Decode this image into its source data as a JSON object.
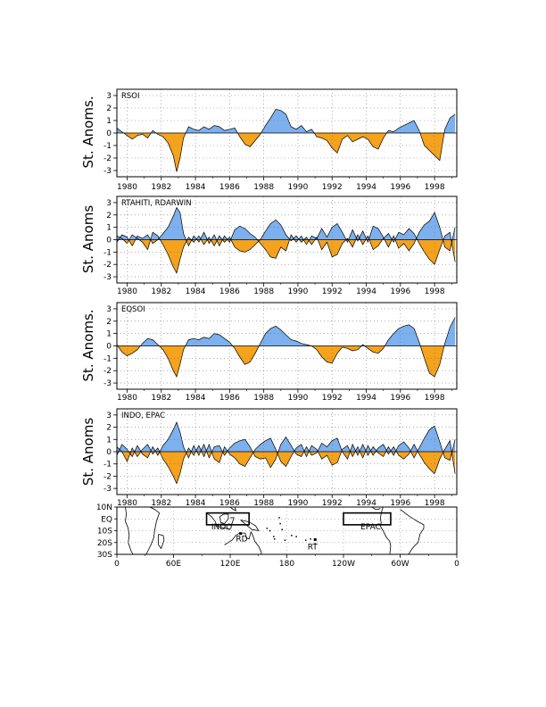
{
  "chart_data": [
    {
      "type": "area",
      "title": "RSOI",
      "ylabel": "St. Anoms.",
      "ylim": [
        -3.5,
        3.5
      ],
      "yticks": [
        -3,
        -2,
        -1,
        0,
        1,
        2,
        3
      ],
      "xlim": [
        1979.4,
        1999.3
      ],
      "xticks": [
        1980,
        1982,
        1984,
        1986,
        1988,
        1990,
        1992,
        1994,
        1996,
        1998
      ],
      "grid": true,
      "positive_color": "#7cb0ee",
      "negative_color": "#f5a21c",
      "x": [
        1979.4,
        1979.7,
        1980.0,
        1980.3,
        1980.6,
        1980.9,
        1981.2,
        1981.5,
        1981.8,
        1982.1,
        1982.4,
        1982.7,
        1982.9,
        1983.1,
        1983.3,
        1983.6,
        1983.9,
        1984.2,
        1984.5,
        1984.8,
        1985.1,
        1985.4,
        1985.7,
        1986.0,
        1986.3,
        1986.6,
        1986.9,
        1987.2,
        1987.5,
        1987.8,
        1988.1,
        1988.4,
        1988.7,
        1989.0,
        1989.3,
        1989.6,
        1989.9,
        1990.2,
        1990.5,
        1990.8,
        1991.1,
        1991.4,
        1991.7,
        1992.0,
        1992.3,
        1992.6,
        1992.9,
        1993.2,
        1993.5,
        1993.8,
        1994.1,
        1994.4,
        1994.7,
        1995.0,
        1995.3,
        1995.6,
        1995.9,
        1996.2,
        1996.5,
        1996.8,
        1997.1,
        1997.4,
        1997.7,
        1998.0,
        1998.3,
        1998.6,
        1998.9,
        1999.2
      ],
      "values": [
        0.4,
        0.1,
        -0.2,
        -0.5,
        -0.2,
        -0.1,
        -0.4,
        0.2,
        -0.1,
        -0.3,
        -0.8,
        -1.8,
        -3.1,
        -2.0,
        -0.4,
        0.5,
        0.3,
        0.2,
        0.5,
        0.3,
        0.6,
        0.5,
        0.2,
        0.3,
        0.4,
        -0.3,
        -0.9,
        -1.1,
        -0.6,
        -0.1,
        0.6,
        1.2,
        1.9,
        1.8,
        1.5,
        0.5,
        0.3,
        0.6,
        0.1,
        0.3,
        -0.3,
        -0.4,
        -0.6,
        -1.2,
        -1.6,
        -0.5,
        -0.2,
        -0.7,
        -0.5,
        -0.3,
        -0.5,
        -1.1,
        -1.3,
        -0.4,
        0.2,
        0.1,
        0.4,
        0.6,
        0.8,
        1.0,
        0.2,
        -1.0,
        -1.4,
        -1.8,
        -2.2,
        0.3,
        1.2,
        1.5
      ]
    },
    {
      "type": "area",
      "title": "RTAHITI, RDARWIN",
      "ylabel": "St. Anoms",
      "ylim": [
        -3.5,
        3.5
      ],
      "yticks": [
        -3,
        -2,
        -1,
        0,
        1,
        2,
        3
      ],
      "xlim": [
        1979.4,
        1999.3
      ],
      "xticks": [
        1980,
        1982,
        1984,
        1986,
        1988,
        1990,
        1992,
        1994,
        1996,
        1998
      ],
      "grid": true,
      "positive_color": "#7cb0ee",
      "negative_color": "#f5a21c",
      "x": [
        1979.4,
        1979.7,
        1980.0,
        1980.3,
        1980.6,
        1980.9,
        1981.2,
        1981.5,
        1981.8,
        1982.1,
        1982.4,
        1982.7,
        1982.9,
        1983.1,
        1983.3,
        1983.6,
        1983.9,
        1984.2,
        1984.5,
        1984.8,
        1985.1,
        1985.4,
        1985.7,
        1986.0,
        1986.3,
        1986.6,
        1986.9,
        1987.2,
        1987.5,
        1987.8,
        1988.1,
        1988.4,
        1988.7,
        1989.0,
        1989.3,
        1989.6,
        1989.9,
        1990.2,
        1990.5,
        1990.8,
        1991.1,
        1991.4,
        1991.7,
        1992.0,
        1992.3,
        1992.6,
        1992.9,
        1993.2,
        1993.5,
        1993.8,
        1994.1,
        1994.4,
        1994.7,
        1995.0,
        1995.3,
        1995.6,
        1995.9,
        1996.2,
        1996.5,
        1996.8,
        1997.1,
        1997.4,
        1997.7,
        1998.0,
        1998.3,
        1998.6,
        1998.9,
        1999.2
      ],
      "series": [
        {
          "values": [
            0.3,
            0.1,
            -0.3,
            0.4,
            0.1,
            -0.2,
            -0.8,
            0.6,
            0.3,
            -0.4,
            -1.2,
            -2.2,
            -2.7,
            -1.6,
            -0.6,
            0.2,
            -0.2,
            0.3,
            -0.4,
            0.2,
            -0.5,
            0.3,
            -0.2,
            0.2,
            -0.6,
            -0.9,
            -1.0,
            -0.8,
            -0.4,
            0.0,
            0.7,
            1.3,
            1.6,
            1.2,
            0.4,
            -0.1,
            0.3,
            -0.2,
            0.2,
            -0.4,
            0.2,
            -0.8,
            -0.2,
            -1.4,
            -1.2,
            -0.3,
            0.1,
            -0.6,
            0.4,
            -0.4,
            0.3,
            -0.8,
            -0.5,
            0.1,
            0.5,
            -0.2,
            0.6,
            0.4,
            0.9,
            0.5,
            -0.3,
            -1.0,
            -1.6,
            -2.0,
            -0.8,
            0.3,
            0.6,
            -1.8
          ]
        },
        {
          "values": [
            -0.2,
            0.4,
            0.2,
            -0.5,
            0.3,
            0.1,
            0.4,
            -0.3,
            0.0,
            0.5,
            1.0,
            1.9,
            2.6,
            2.2,
            0.5,
            -0.5,
            0.3,
            -0.2,
            0.6,
            -0.3,
            0.4,
            -0.5,
            0.3,
            -0.2,
            0.8,
            1.1,
            0.9,
            0.5,
            0.2,
            -0.3,
            -0.8,
            -1.4,
            -1.5,
            -0.6,
            -0.9,
            0.4,
            -0.2,
            0.3,
            -0.4,
            0.3,
            0.1,
            0.9,
            0.2,
            1.0,
            1.3,
            0.6,
            -0.2,
            0.8,
            -0.1,
            0.7,
            -0.2,
            1.1,
            0.9,
            0.2,
            -0.6,
            0.3,
            -0.7,
            -0.3,
            -0.9,
            -0.3,
            0.6,
            1.2,
            1.5,
            2.2,
            1.0,
            -0.6,
            -0.9,
            1.0
          ]
        }
      ]
    },
    {
      "type": "area",
      "title": "EQSOI",
      "ylabel": "St. Anoms.",
      "ylim": [
        -3.5,
        3.5
      ],
      "yticks": [
        -3,
        -2,
        -1,
        0,
        1,
        2,
        3
      ],
      "xlim": [
        1979.4,
        1999.3
      ],
      "xticks": [
        1980,
        1982,
        1984,
        1986,
        1988,
        1990,
        1992,
        1994,
        1996,
        1998
      ],
      "grid": true,
      "positive_color": "#7cb0ee",
      "negative_color": "#f5a21c",
      "x": [
        1979.4,
        1979.7,
        1980.0,
        1980.3,
        1980.6,
        1980.9,
        1981.2,
        1981.5,
        1981.8,
        1982.1,
        1982.4,
        1982.7,
        1982.9,
        1983.1,
        1983.3,
        1983.6,
        1983.9,
        1984.2,
        1984.5,
        1984.8,
        1985.1,
        1985.4,
        1985.7,
        1986.0,
        1986.3,
        1986.6,
        1986.9,
        1987.2,
        1987.5,
        1987.8,
        1988.1,
        1988.4,
        1988.7,
        1989.0,
        1989.3,
        1989.6,
        1989.9,
        1990.2,
        1990.5,
        1990.8,
        1991.1,
        1991.4,
        1991.7,
        1992.0,
        1992.3,
        1992.6,
        1992.9,
        1993.2,
        1993.5,
        1993.8,
        1994.1,
        1994.4,
        1994.7,
        1995.0,
        1995.3,
        1995.6,
        1995.9,
        1996.2,
        1996.5,
        1996.8,
        1997.1,
        1997.4,
        1997.7,
        1998.0,
        1998.3,
        1998.6,
        1998.9,
        1999.2
      ],
      "values": [
        0.1,
        -0.5,
        -0.8,
        -0.6,
        -0.3,
        0.2,
        0.6,
        0.5,
        0.1,
        -0.3,
        -1.0,
        -2.0,
        -2.5,
        -1.5,
        -0.3,
        0.5,
        0.6,
        0.5,
        0.7,
        0.6,
        1.0,
        0.9,
        0.6,
        0.3,
        -0.2,
        -0.9,
        -1.5,
        -1.3,
        -0.6,
        0.2,
        1.0,
        1.4,
        1.6,
        1.3,
        0.9,
        0.5,
        0.4,
        0.2,
        0.1,
        0.0,
        -0.3,
        -0.9,
        -1.3,
        -1.4,
        -0.6,
        -0.1,
        -0.2,
        -0.4,
        -0.3,
        0.1,
        -0.2,
        -0.5,
        -0.6,
        -0.2,
        0.5,
        1.0,
        1.4,
        1.6,
        1.7,
        1.4,
        0.3,
        -1.0,
        -2.2,
        -2.5,
        -1.5,
        0.2,
        1.5,
        2.3
      ]
    },
    {
      "type": "area",
      "title": "INDO, EPAC",
      "ylabel": "St. Anoms",
      "ylim": [
        -3.5,
        3.5
      ],
      "yticks": [
        -3,
        -2,
        -1,
        0,
        1,
        2,
        3
      ],
      "xlim": [
        1979.4,
        1999.3
      ],
      "xticks": [
        1980,
        1982,
        1984,
        1986,
        1988,
        1990,
        1992,
        1994,
        1996,
        1998
      ],
      "grid": true,
      "positive_color": "#7cb0ee",
      "negative_color": "#f5a21c",
      "x": [
        1979.4,
        1979.7,
        1980.0,
        1980.3,
        1980.6,
        1980.9,
        1981.2,
        1981.5,
        1981.8,
        1982.1,
        1982.4,
        1982.7,
        1982.9,
        1983.1,
        1983.3,
        1983.6,
        1983.9,
        1984.2,
        1984.5,
        1984.8,
        1985.1,
        1985.4,
        1985.7,
        1986.0,
        1986.3,
        1986.6,
        1986.9,
        1987.2,
        1987.5,
        1987.8,
        1988.1,
        1988.4,
        1988.7,
        1989.0,
        1989.3,
        1989.6,
        1989.9,
        1990.2,
        1990.5,
        1990.8,
        1991.1,
        1991.4,
        1991.7,
        1992.0,
        1992.3,
        1992.6,
        1992.9,
        1993.2,
        1993.5,
        1993.8,
        1994.1,
        1994.4,
        1994.7,
        1995.0,
        1995.3,
        1995.6,
        1995.9,
        1996.2,
        1996.5,
        1996.8,
        1997.1,
        1997.4,
        1997.7,
        1998.0,
        1998.3,
        1998.6,
        1998.9,
        1999.2
      ],
      "series": [
        {
          "values": [
            0.4,
            0.0,
            -0.8,
            0.3,
            -0.4,
            0.2,
            0.6,
            -0.2,
            0.3,
            -0.6,
            -1.2,
            -2.0,
            -2.6,
            -1.8,
            -0.6,
            0.3,
            -0.3,
            0.5,
            -0.4,
            0.6,
            -0.6,
            -0.9,
            0.4,
            -0.2,
            -0.5,
            -1.0,
            -1.2,
            -0.5,
            0.2,
            0.6,
            0.9,
            1.1,
            0.2,
            -0.8,
            -1.2,
            -0.4,
            0.3,
            0.6,
            -0.4,
            0.5,
            0.2,
            -0.6,
            -0.3,
            -1.1,
            -0.9,
            0.2,
            0.5,
            -0.4,
            0.4,
            -0.5,
            0.5,
            -0.3,
            0.3,
            0.6,
            -0.2,
            0.4,
            -0.3,
            -0.6,
            -0.2,
            0.6,
            -0.2,
            -0.9,
            -1.4,
            -1.8,
            -0.6,
            0.2,
            0.9,
            -1.8
          ]
        },
        {
          "values": [
            -0.3,
            0.6,
            0.2,
            -0.4,
            0.5,
            -0.2,
            -0.5,
            0.4,
            -0.3,
            0.5,
            1.0,
            1.8,
            2.4,
            1.6,
            0.4,
            -0.5,
            0.5,
            -0.3,
            0.6,
            -0.5,
            0.4,
            0.5,
            -0.3,
            0.3,
            0.7,
            0.9,
            1.0,
            0.4,
            -0.4,
            -0.6,
            -0.5,
            -1.3,
            -0.6,
            0.6,
            1.2,
            0.5,
            -0.2,
            -0.4,
            0.4,
            -0.3,
            -0.1,
            0.7,
            0.4,
            0.9,
            1.1,
            0.0,
            -0.6,
            0.6,
            -0.3,
            0.6,
            -0.3,
            0.4,
            -0.1,
            -0.4,
            0.4,
            -0.3,
            0.5,
            0.8,
            0.3,
            -0.5,
            0.3,
            1.1,
            1.8,
            2.1,
            0.8,
            -0.5,
            -0.7,
            1.0
          ]
        }
      ]
    }
  ],
  "map": {
    "y_ticks": [
      "10N",
      "EQ",
      "10S",
      "20S",
      "30S"
    ],
    "x_ticks": [
      "0",
      "60E",
      "120E",
      "180",
      "120W",
      "60W",
      "0"
    ],
    "lonlim": [
      0,
      360
    ],
    "latlim": [
      -30,
      10
    ],
    "regions": [
      {
        "label": "INDO",
        "lon": [
          95,
          140
        ],
        "lat": [
          -5,
          5
        ],
        "label_lon": 100,
        "label_lat": -9
      },
      {
        "label": "EPAC",
        "lon": [
          240,
          290
        ],
        "lat": [
          -5,
          5
        ],
        "label_lon": 258,
        "label_lat": -9
      }
    ],
    "stations": [
      {
        "label": "RD",
        "lon": 131,
        "lat": -12.4,
        "label_lon": 126,
        "label_lat": -19
      },
      {
        "label": "RT",
        "lon": 210,
        "lat": -17.5,
        "label_lon": 202,
        "label_lat": -26
      }
    ]
  },
  "colors": {
    "positive": "#7cb0ee",
    "negative": "#f5a21c",
    "grid": "#777777",
    "axis": "#000000"
  }
}
